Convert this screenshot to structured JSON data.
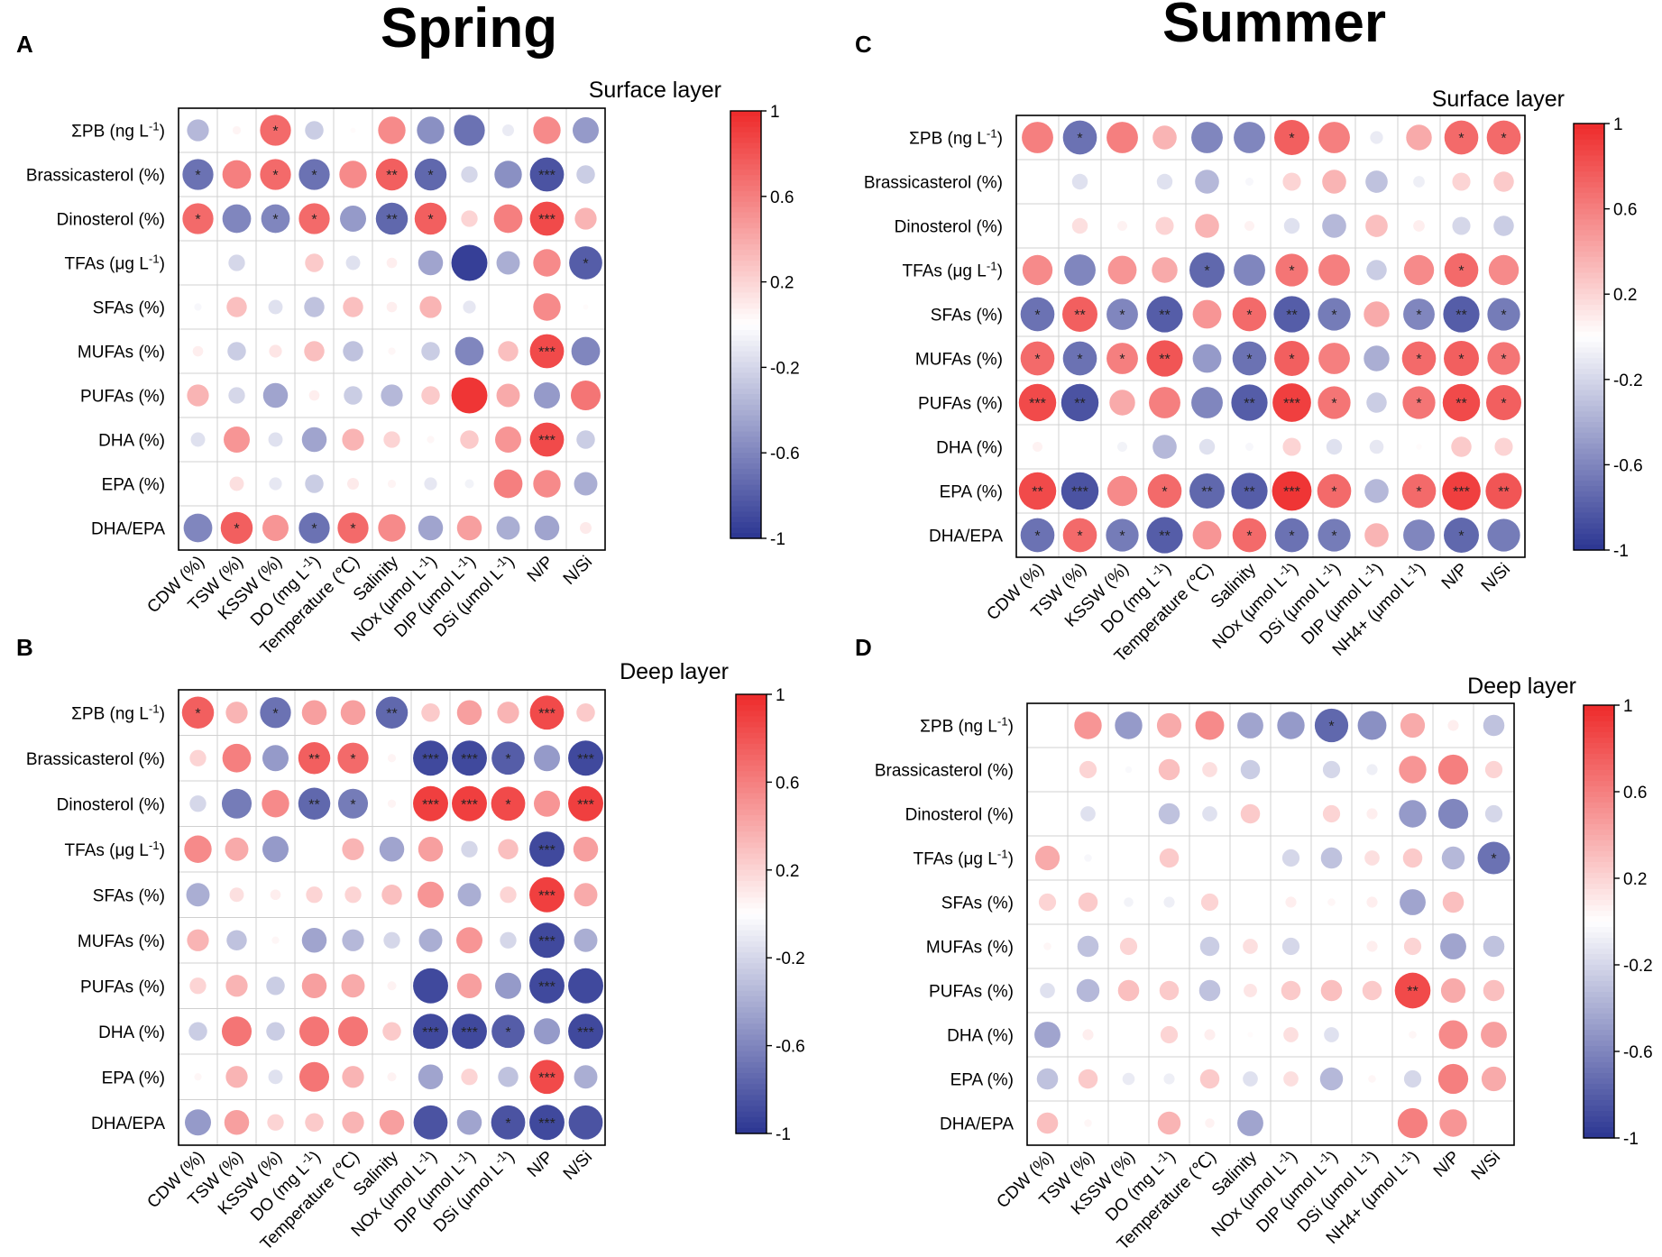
{
  "figure": {
    "season_spring": "Spring",
    "season_summer": "Summer"
  },
  "colors": {
    "positive": "#ee2a2a",
    "negative": "#2b3592",
    "zero": "#ffffff",
    "grid": "#d0d0d0",
    "text": "#000000",
    "stars": "#222222"
  },
  "colorbar": {
    "ticks": [
      "1",
      "0.6",
      "0.2",
      "-0.2",
      "-0.6",
      "-1"
    ],
    "values": [
      1,
      0.6,
      0.2,
      -0.2,
      -0.6,
      -1
    ]
  },
  "chart_data": [
    {
      "panel_id": "A",
      "panel_label": "A",
      "type": "heatmap",
      "subtitle": "Surface layer",
      "season": "Spring",
      "value_range": [
        -1,
        1
      ],
      "rows": [
        "ΣPB (ng L-1)",
        "Brassicasterol (%)",
        "Dinosterol (%)",
        "TFAs (μg L-1)",
        "SFAs (%)",
        "MUFAs (%)",
        "PUFAs (%)",
        "DHA (%)",
        "EPA (%)",
        "DHA/EPA"
      ],
      "columns": [
        "CDW (%)",
        "TSW (%)",
        "KSSW (%)",
        "DO (mg L-1)",
        "Temperature (℃)",
        "Salinity",
        "NOx (μmol L-1)",
        "DIP (μmol L-1)",
        "DSi (μmol L-1)",
        "N/P",
        "N/Si"
      ],
      "values": [
        [
          -0.35,
          0.05,
          0.7,
          -0.25,
          0.02,
          0.55,
          -0.55,
          -0.7,
          -0.1,
          0.55,
          -0.5
        ],
        [
          -0.7,
          0.6,
          0.7,
          -0.7,
          0.55,
          0.75,
          -0.75,
          -0.2,
          -0.55,
          -0.85,
          -0.25
        ],
        [
          0.7,
          -0.6,
          -0.6,
          0.7,
          -0.5,
          -0.75,
          0.75,
          0.2,
          0.6,
          0.85,
          0.35
        ],
        [
          0.0,
          -0.2,
          0.0,
          0.25,
          -0.15,
          0.08,
          -0.45,
          -0.95,
          -0.4,
          0.55,
          -0.8
        ],
        [
          -0.04,
          0.3,
          -0.15,
          -0.3,
          0.3,
          0.08,
          0.35,
          -0.12,
          0.0,
          0.55,
          0.02
        ],
        [
          0.08,
          -0.25,
          0.12,
          0.3,
          -0.3,
          0.04,
          -0.25,
          -0.6,
          0.3,
          0.85,
          -0.6
        ],
        [
          0.35,
          -0.2,
          -0.45,
          0.08,
          -0.25,
          -0.35,
          0.25,
          0.95,
          0.4,
          -0.5,
          0.65
        ],
        [
          -0.15,
          0.5,
          -0.15,
          -0.45,
          0.35,
          0.2,
          0.04,
          0.25,
          0.5,
          0.85,
          -0.25
        ],
        [
          0.0,
          0.15,
          -0.12,
          -0.25,
          0.1,
          0.05,
          -0.12,
          -0.06,
          0.6,
          0.55,
          -0.4
        ],
        [
          -0.6,
          0.75,
          0.5,
          -0.7,
          0.7,
          0.55,
          -0.45,
          0.45,
          -0.4,
          -0.45,
          0.1
        ]
      ],
      "significance": [
        [
          "",
          "",
          "*",
          "",
          "",
          "",
          "",
          "",
          "",
          "",
          ""
        ],
        [
          "*",
          "",
          "*",
          "*",
          "",
          "**",
          "*",
          "",
          "",
          "***",
          ""
        ],
        [
          "*",
          "",
          "*",
          "*",
          "",
          "**",
          "*",
          "",
          "",
          "***",
          ""
        ],
        [
          "",
          "",
          "",
          "",
          "",
          "",
          "",
          "",
          "",
          "",
          "*"
        ],
        [
          "",
          "",
          "",
          "",
          "",
          "",
          "",
          "",
          "",
          "",
          ""
        ],
        [
          "",
          "",
          "",
          "",
          "",
          "",
          "",
          "",
          "",
          "***",
          ""
        ],
        [
          "",
          "",
          "",
          "",
          "",
          "",
          "",
          "",
          "",
          "",
          ""
        ],
        [
          "",
          "",
          "",
          "",
          "",
          "",
          "",
          "",
          "",
          "***",
          ""
        ],
        [
          "",
          "",
          "",
          "",
          "",
          "",
          "",
          "",
          "",
          "",
          ""
        ],
        [
          "",
          "*",
          "",
          "*",
          "*",
          "",
          "",
          "",
          "",
          "",
          ""
        ]
      ]
    },
    {
      "panel_id": "B",
      "panel_label": "B",
      "type": "heatmap",
      "subtitle": "Deep layer",
      "season": "Spring",
      "value_range": [
        -1,
        1
      ],
      "rows": [
        "ΣPB (ng L-1)",
        "Brassicasterol (%)",
        "Dinosterol (%)",
        "TFAs (μg L-1)",
        "SFAs (%)",
        "MUFAs (%)",
        "PUFAs (%)",
        "DHA (%)",
        "EPA (%)",
        "DHA/EPA"
      ],
      "columns": [
        "CDW (%)",
        "TSW (%)",
        "KSSW (%)",
        "DO (mg L-1)",
        "Temperature (℃)",
        "Salinity",
        "NOx (μmol L-1)",
        "DIP (μmol L-1)",
        "DSi (μmol L-1)",
        "N/P",
        "N/Si"
      ],
      "values": [
        [
          0.75,
          0.35,
          -0.7,
          0.45,
          0.45,
          -0.75,
          0.25,
          0.45,
          0.35,
          0.85,
          0.25
        ],
        [
          0.2,
          0.6,
          -0.5,
          0.75,
          0.7,
          0.05,
          -0.9,
          -0.9,
          -0.8,
          -0.5,
          -0.9
        ],
        [
          -0.2,
          -0.65,
          0.55,
          -0.75,
          -0.65,
          0.05,
          0.9,
          0.9,
          0.85,
          0.5,
          0.9
        ],
        [
          0.55,
          0.4,
          -0.5,
          0.0,
          0.35,
          -0.45,
          0.45,
          -0.2,
          0.3,
          -0.9,
          0.45
        ],
        [
          -0.4,
          0.15,
          0.08,
          0.2,
          0.2,
          0.3,
          0.5,
          -0.4,
          0.2,
          0.9,
          0.4
        ],
        [
          0.35,
          -0.3,
          0.04,
          -0.45,
          -0.35,
          -0.2,
          -0.4,
          0.5,
          -0.2,
          -0.9,
          -0.4
        ],
        [
          0.2,
          0.35,
          -0.25,
          0.45,
          0.4,
          0.06,
          -0.9,
          0.45,
          -0.5,
          -0.9,
          -0.9
        ],
        [
          -0.25,
          0.65,
          -0.25,
          0.65,
          0.65,
          0.25,
          -0.9,
          -0.9,
          -0.8,
          -0.5,
          -0.9
        ],
        [
          0.04,
          0.35,
          -0.15,
          0.65,
          0.35,
          0.06,
          -0.45,
          0.2,
          -0.3,
          0.85,
          -0.4
        ],
        [
          -0.5,
          0.45,
          0.2,
          0.25,
          0.35,
          0.45,
          -0.85,
          -0.45,
          -0.85,
          -0.9,
          -0.85
        ]
      ],
      "significance": [
        [
          "*",
          "",
          "*",
          "",
          "",
          "**",
          "",
          "",
          "",
          "***",
          ""
        ],
        [
          "",
          "",
          "",
          "**",
          "*",
          "",
          "***",
          "***",
          "*",
          "",
          "***"
        ],
        [
          "",
          "",
          "",
          "**",
          "*",
          "",
          "***",
          "***",
          "*",
          "",
          "***"
        ],
        [
          "",
          "",
          "",
          "",
          "",
          "",
          "",
          "",
          "",
          "***",
          ""
        ],
        [
          "",
          "",
          "",
          "",
          "",
          "",
          "",
          "",
          "",
          "***",
          ""
        ],
        [
          "",
          "",
          "",
          "",
          "",
          "",
          "",
          "",
          "",
          "***",
          ""
        ],
        [
          "",
          "",
          "",
          "",
          "",
          "",
          "",
          "",
          "",
          "***",
          ""
        ],
        [
          "",
          "",
          "",
          "",
          "",
          "",
          "***",
          "***",
          "*",
          "",
          "***"
        ],
        [
          "",
          "",
          "",
          "",
          "",
          "",
          "",
          "",
          "",
          "***",
          ""
        ],
        [
          "",
          "",
          "",
          "",
          "",
          "",
          "",
          "",
          "*",
          "***",
          ""
        ]
      ]
    },
    {
      "panel_id": "C",
      "panel_label": "C",
      "type": "heatmap",
      "subtitle": "Surface layer",
      "season": "Summer",
      "value_range": [
        -1,
        1
      ],
      "rows": [
        "ΣPB (ng L-1)",
        "Brassicasterol (%)",
        "Dinosterol (%)",
        "TFAs (μg L-1)",
        "SFAs (%)",
        "MUFAs (%)",
        "PUFAs (%)",
        "DHA (%)",
        "EPA (%)",
        "DHA/EPA"
      ],
      "columns": [
        "CDW (%)",
        "TSW (%)",
        "KSSW (%)",
        "DO (mg L-1)",
        "Temperature (℃)",
        "Salinity",
        "NOx (μmol L-1)",
        "DSi (μmol L-1)",
        "DIP (μmol L-1)",
        "NH4+ (μmol L-1)",
        "N/P",
        "N/Si"
      ],
      "values": [
        [
          0.6,
          -0.7,
          0.6,
          0.35,
          -0.6,
          -0.6,
          0.75,
          0.6,
          -0.1,
          0.4,
          0.7,
          0.7
        ],
        [
          0.0,
          -0.15,
          0.0,
          -0.15,
          -0.35,
          -0.04,
          0.2,
          0.35,
          -0.3,
          -0.08,
          0.2,
          0.25
        ],
        [
          0.0,
          0.15,
          0.06,
          0.2,
          0.35,
          0.06,
          -0.15,
          -0.35,
          0.3,
          0.08,
          -0.2,
          -0.25
        ],
        [
          0.55,
          -0.6,
          0.5,
          0.4,
          -0.75,
          -0.6,
          0.65,
          0.6,
          -0.25,
          0.55,
          0.7,
          0.55
        ],
        [
          -0.7,
          0.75,
          -0.6,
          -0.8,
          0.5,
          0.7,
          -0.8,
          -0.65,
          0.4,
          -0.6,
          -0.8,
          -0.65
        ],
        [
          0.7,
          -0.7,
          0.6,
          0.8,
          -0.5,
          -0.7,
          0.75,
          0.6,
          -0.4,
          0.7,
          0.75,
          0.65
        ],
        [
          0.85,
          -0.85,
          0.4,
          0.6,
          -0.6,
          -0.8,
          0.9,
          0.65,
          -0.25,
          0.65,
          0.85,
          0.75
        ],
        [
          0.06,
          0.0,
          -0.06,
          -0.35,
          -0.15,
          -0.04,
          0.2,
          -0.15,
          -0.12,
          0.02,
          0.25,
          0.2
        ],
        [
          0.85,
          -0.85,
          0.55,
          0.7,
          -0.75,
          -0.8,
          0.95,
          0.7,
          -0.35,
          0.7,
          0.9,
          0.8
        ],
        [
          -0.7,
          0.7,
          -0.65,
          -0.8,
          0.5,
          0.7,
          -0.7,
          -0.65,
          0.35,
          -0.6,
          -0.75,
          -0.65
        ]
      ],
      "significance": [
        [
          "",
          "*",
          "",
          "",
          "",
          "",
          "*",
          "",
          "",
          "",
          "*",
          "*"
        ],
        [
          "",
          "",
          "",
          "",
          "",
          "",
          "",
          "",
          "",
          "",
          "",
          ""
        ],
        [
          "",
          "",
          "",
          "",
          "",
          "",
          "",
          "",
          "",
          "",
          "",
          ""
        ],
        [
          "",
          "",
          "",
          "",
          "*",
          "",
          "*",
          "",
          "",
          "",
          "*",
          ""
        ],
        [
          "*",
          "**",
          "*",
          "**",
          "",
          "*",
          "**",
          "*",
          "",
          "*",
          "**",
          "*"
        ],
        [
          "*",
          "*",
          "*",
          "**",
          "",
          "*",
          "*",
          "",
          "",
          "*",
          "*",
          "*"
        ],
        [
          "***",
          "**",
          "",
          "",
          "",
          "**",
          "***",
          "*",
          "",
          "*",
          "**",
          "*"
        ],
        [
          "",
          "",
          "",
          "",
          "",
          "",
          "",
          "",
          "",
          "",
          "",
          ""
        ],
        [
          "**",
          "***",
          "",
          "*",
          "**",
          "**",
          "***",
          "*",
          "",
          "*",
          "***",
          "**"
        ],
        [
          "*",
          "*",
          "*",
          "**",
          "",
          "*",
          "*",
          "*",
          "",
          "",
          "*",
          ""
        ]
      ]
    },
    {
      "panel_id": "D",
      "panel_label": "D",
      "type": "heatmap",
      "subtitle": "Deep layer",
      "season": "Summer",
      "value_range": [
        -1,
        1
      ],
      "rows": [
        "ΣPB (ng L-1)",
        "Brassicasterol (%)",
        "Dinosterol (%)",
        "TFAs (μg L-1)",
        "SFAs (%)",
        "MUFAs (%)",
        "PUFAs (%)",
        "DHA (%)",
        "EPA (%)",
        "DHA/EPA"
      ],
      "columns": [
        "CDW (%)",
        "TSW (%)",
        "KSSW (%)",
        "DO (mg L-1)",
        "Temperature (℃)",
        "Salinity",
        "NOx (μmol L-1)",
        "DIP (μmol L-1)",
        "DSi (μmol L-1)",
        "NH4+ (μmol L-1)",
        "N/P",
        "N/Si"
      ],
      "values": [
        [
          0.0,
          0.5,
          -0.5,
          0.4,
          0.55,
          -0.45,
          -0.5,
          -0.75,
          -0.55,
          0.4,
          0.08,
          -0.3
        ],
        [
          0.0,
          0.2,
          -0.03,
          0.3,
          0.15,
          -0.25,
          0.0,
          -0.2,
          -0.08,
          0.5,
          0.6,
          0.2
        ],
        [
          0.0,
          -0.15,
          0.0,
          -0.3,
          -0.15,
          0.25,
          0.0,
          0.2,
          0.08,
          -0.5,
          -0.6,
          -0.2
        ],
        [
          0.4,
          -0.04,
          0.0,
          0.25,
          0.0,
          0.0,
          -0.2,
          -0.3,
          0.15,
          0.25,
          -0.35,
          -0.7
        ],
        [
          0.2,
          0.25,
          -0.06,
          -0.08,
          0.2,
          0.0,
          0.08,
          0.04,
          0.08,
          -0.45,
          0.3,
          0.0
        ],
        [
          0.04,
          -0.3,
          0.2,
          0.0,
          -0.25,
          0.15,
          -0.2,
          0.0,
          0.08,
          0.2,
          -0.45,
          -0.3
        ],
        [
          -0.15,
          -0.35,
          0.3,
          0.25,
          -0.3,
          0.12,
          0.25,
          0.3,
          0.25,
          0.85,
          0.4,
          0.3
        ],
        [
          -0.45,
          0.08,
          0.0,
          0.2,
          0.08,
          0.02,
          0.15,
          -0.15,
          0.0,
          0.04,
          0.55,
          0.45
        ],
        [
          -0.3,
          0.25,
          -0.1,
          -0.08,
          0.25,
          -0.15,
          0.15,
          -0.35,
          0.04,
          -0.2,
          0.6,
          0.4
        ],
        [
          0.3,
          0.04,
          0.0,
          0.35,
          0.06,
          -0.45,
          0.0,
          0.0,
          0.0,
          0.6,
          0.5,
          0.0
        ]
      ],
      "significance": [
        [
          "",
          "",
          "",
          "",
          "",
          "",
          "",
          "*",
          "",
          "",
          "",
          ""
        ],
        [
          "",
          "",
          "",
          "",
          "",
          "",
          "",
          "",
          "",
          "",
          "",
          ""
        ],
        [
          "",
          "",
          "",
          "",
          "",
          "",
          "",
          "",
          "",
          "",
          "",
          ""
        ],
        [
          "",
          "",
          "",
          "",
          "",
          "",
          "",
          "",
          "",
          "",
          "",
          "*"
        ],
        [
          "",
          "",
          "",
          "",
          "",
          "",
          "",
          "",
          "",
          "",
          "",
          ""
        ],
        [
          "",
          "",
          "",
          "",
          "",
          "",
          "",
          "",
          "",
          "",
          "",
          ""
        ],
        [
          "",
          "",
          "",
          "",
          "",
          "",
          "",
          "",
          "",
          "**",
          "",
          ""
        ],
        [
          "",
          "",
          "",
          "",
          "",
          "",
          "",
          "",
          "",
          "",
          "",
          ""
        ],
        [
          "",
          "",
          "",
          "",
          "",
          "",
          "",
          "",
          "",
          "",
          "",
          ""
        ],
        [
          "",
          "",
          "",
          "",
          "",
          "",
          "",
          "",
          "",
          "",
          "",
          ""
        ]
      ]
    }
  ]
}
